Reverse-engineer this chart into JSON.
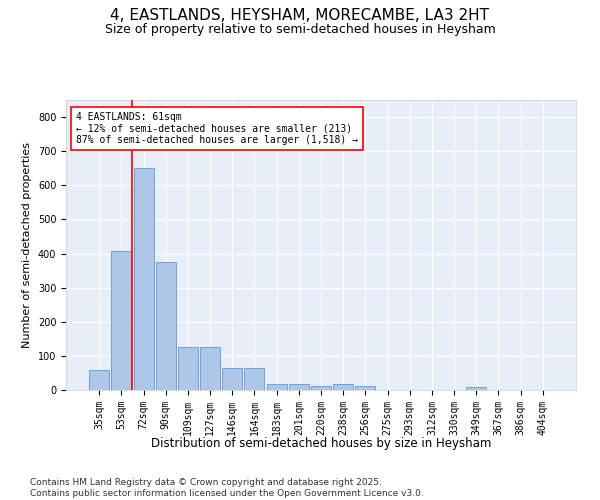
{
  "title": "4, EASTLANDS, HEYSHAM, MORECAMBE, LA3 2HT",
  "subtitle": "Size of property relative to semi-detached houses in Heysham",
  "xlabel": "Distribution of semi-detached houses by size in Heysham",
  "ylabel": "Number of semi-detached properties",
  "categories": [
    "35sqm",
    "53sqm",
    "72sqm",
    "90sqm",
    "109sqm",
    "127sqm",
    "146sqm",
    "164sqm",
    "183sqm",
    "201sqm",
    "220sqm",
    "238sqm",
    "256sqm",
    "275sqm",
    "293sqm",
    "312sqm",
    "330sqm",
    "349sqm",
    "367sqm",
    "386sqm",
    "404sqm"
  ],
  "values": [
    60,
    408,
    650,
    375,
    125,
    125,
    65,
    65,
    18,
    18,
    12,
    18,
    12,
    0,
    0,
    0,
    0,
    8,
    0,
    0,
    0
  ],
  "bar_color": "#aec6e8",
  "bar_edge_color": "#5b9bd5",
  "vline_pos": 1.5,
  "vline_color": "red",
  "annotation_text": "4 EASTLANDS: 61sqm\n← 12% of semi-detached houses are smaller (213)\n87% of semi-detached houses are larger (1,518) →",
  "annotation_box_color": "white",
  "annotation_box_edge": "red",
  "footer_text": "Contains HM Land Registry data © Crown copyright and database right 2025.\nContains public sector information licensed under the Open Government Licence v3.0.",
  "ylim": [
    0,
    850
  ],
  "yticks": [
    0,
    100,
    200,
    300,
    400,
    500,
    600,
    700,
    800
  ],
  "bg_color": "#e8eef8",
  "title_fontsize": 11,
  "subtitle_fontsize": 9,
  "footer_fontsize": 6.5,
  "ylabel_fontsize": 8,
  "xlabel_fontsize": 8.5,
  "tick_fontsize": 7
}
